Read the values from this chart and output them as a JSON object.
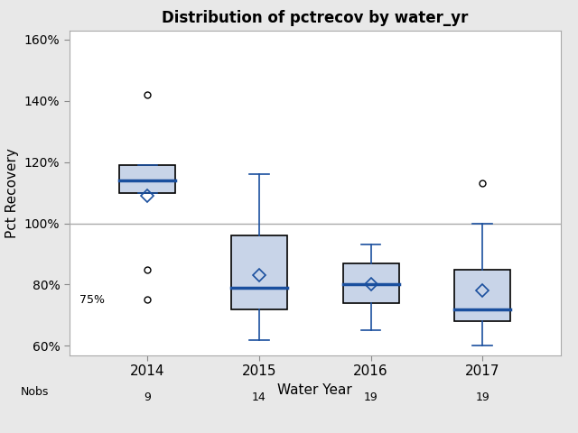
{
  "title": "Distribution of pctrecov by water_yr",
  "xlabel": "Water Year",
  "ylabel": "Pct Recovery",
  "years": [
    2014,
    2015,
    2016,
    2017
  ],
  "nobs": [
    9,
    14,
    19,
    19
  ],
  "boxes": [
    {
      "q1": 110,
      "median": 114,
      "q3": 119,
      "whisker_low": 110,
      "whisker_high": 119,
      "mean": 109,
      "outliers": [
        85,
        75,
        142
      ]
    },
    {
      "q1": 72,
      "median": 79,
      "q3": 96,
      "whisker_low": 62,
      "whisker_high": 116,
      "mean": 83,
      "outliers": []
    },
    {
      "q1": 74,
      "median": 80,
      "q3": 87,
      "whisker_low": 65,
      "whisker_high": 93,
      "mean": 80,
      "outliers": []
    },
    {
      "q1": 68,
      "median": 72,
      "q3": 85,
      "whisker_low": 60,
      "whisker_high": 100,
      "mean": 78,
      "outliers": [
        113
      ]
    }
  ],
  "hline_y": 100,
  "ylim": [
    57,
    163
  ],
  "yticks": [
    60,
    80,
    100,
    120,
    140,
    160
  ],
  "yticklabels": [
    "60%",
    "80%",
    "100%",
    "120%",
    "140%",
    "160%"
  ],
  "box_facecolor": "#c8d4e8",
  "box_edgecolor": "#000000",
  "median_color": "#1a4f9e",
  "whisker_color": "#1a4f9e",
  "cap_color": "#1a4f9e",
  "mean_marker_color": "#1a4f9e",
  "outlier_marker_color": "#000000",
  "hline_color": "#aaaaaa",
  "background_color": "#e8e8e8",
  "plot_bg_color": "#ffffff",
  "annotation_75pct": "75%",
  "box_width": 0.5,
  "positions": [
    1,
    2,
    3,
    4
  ]
}
